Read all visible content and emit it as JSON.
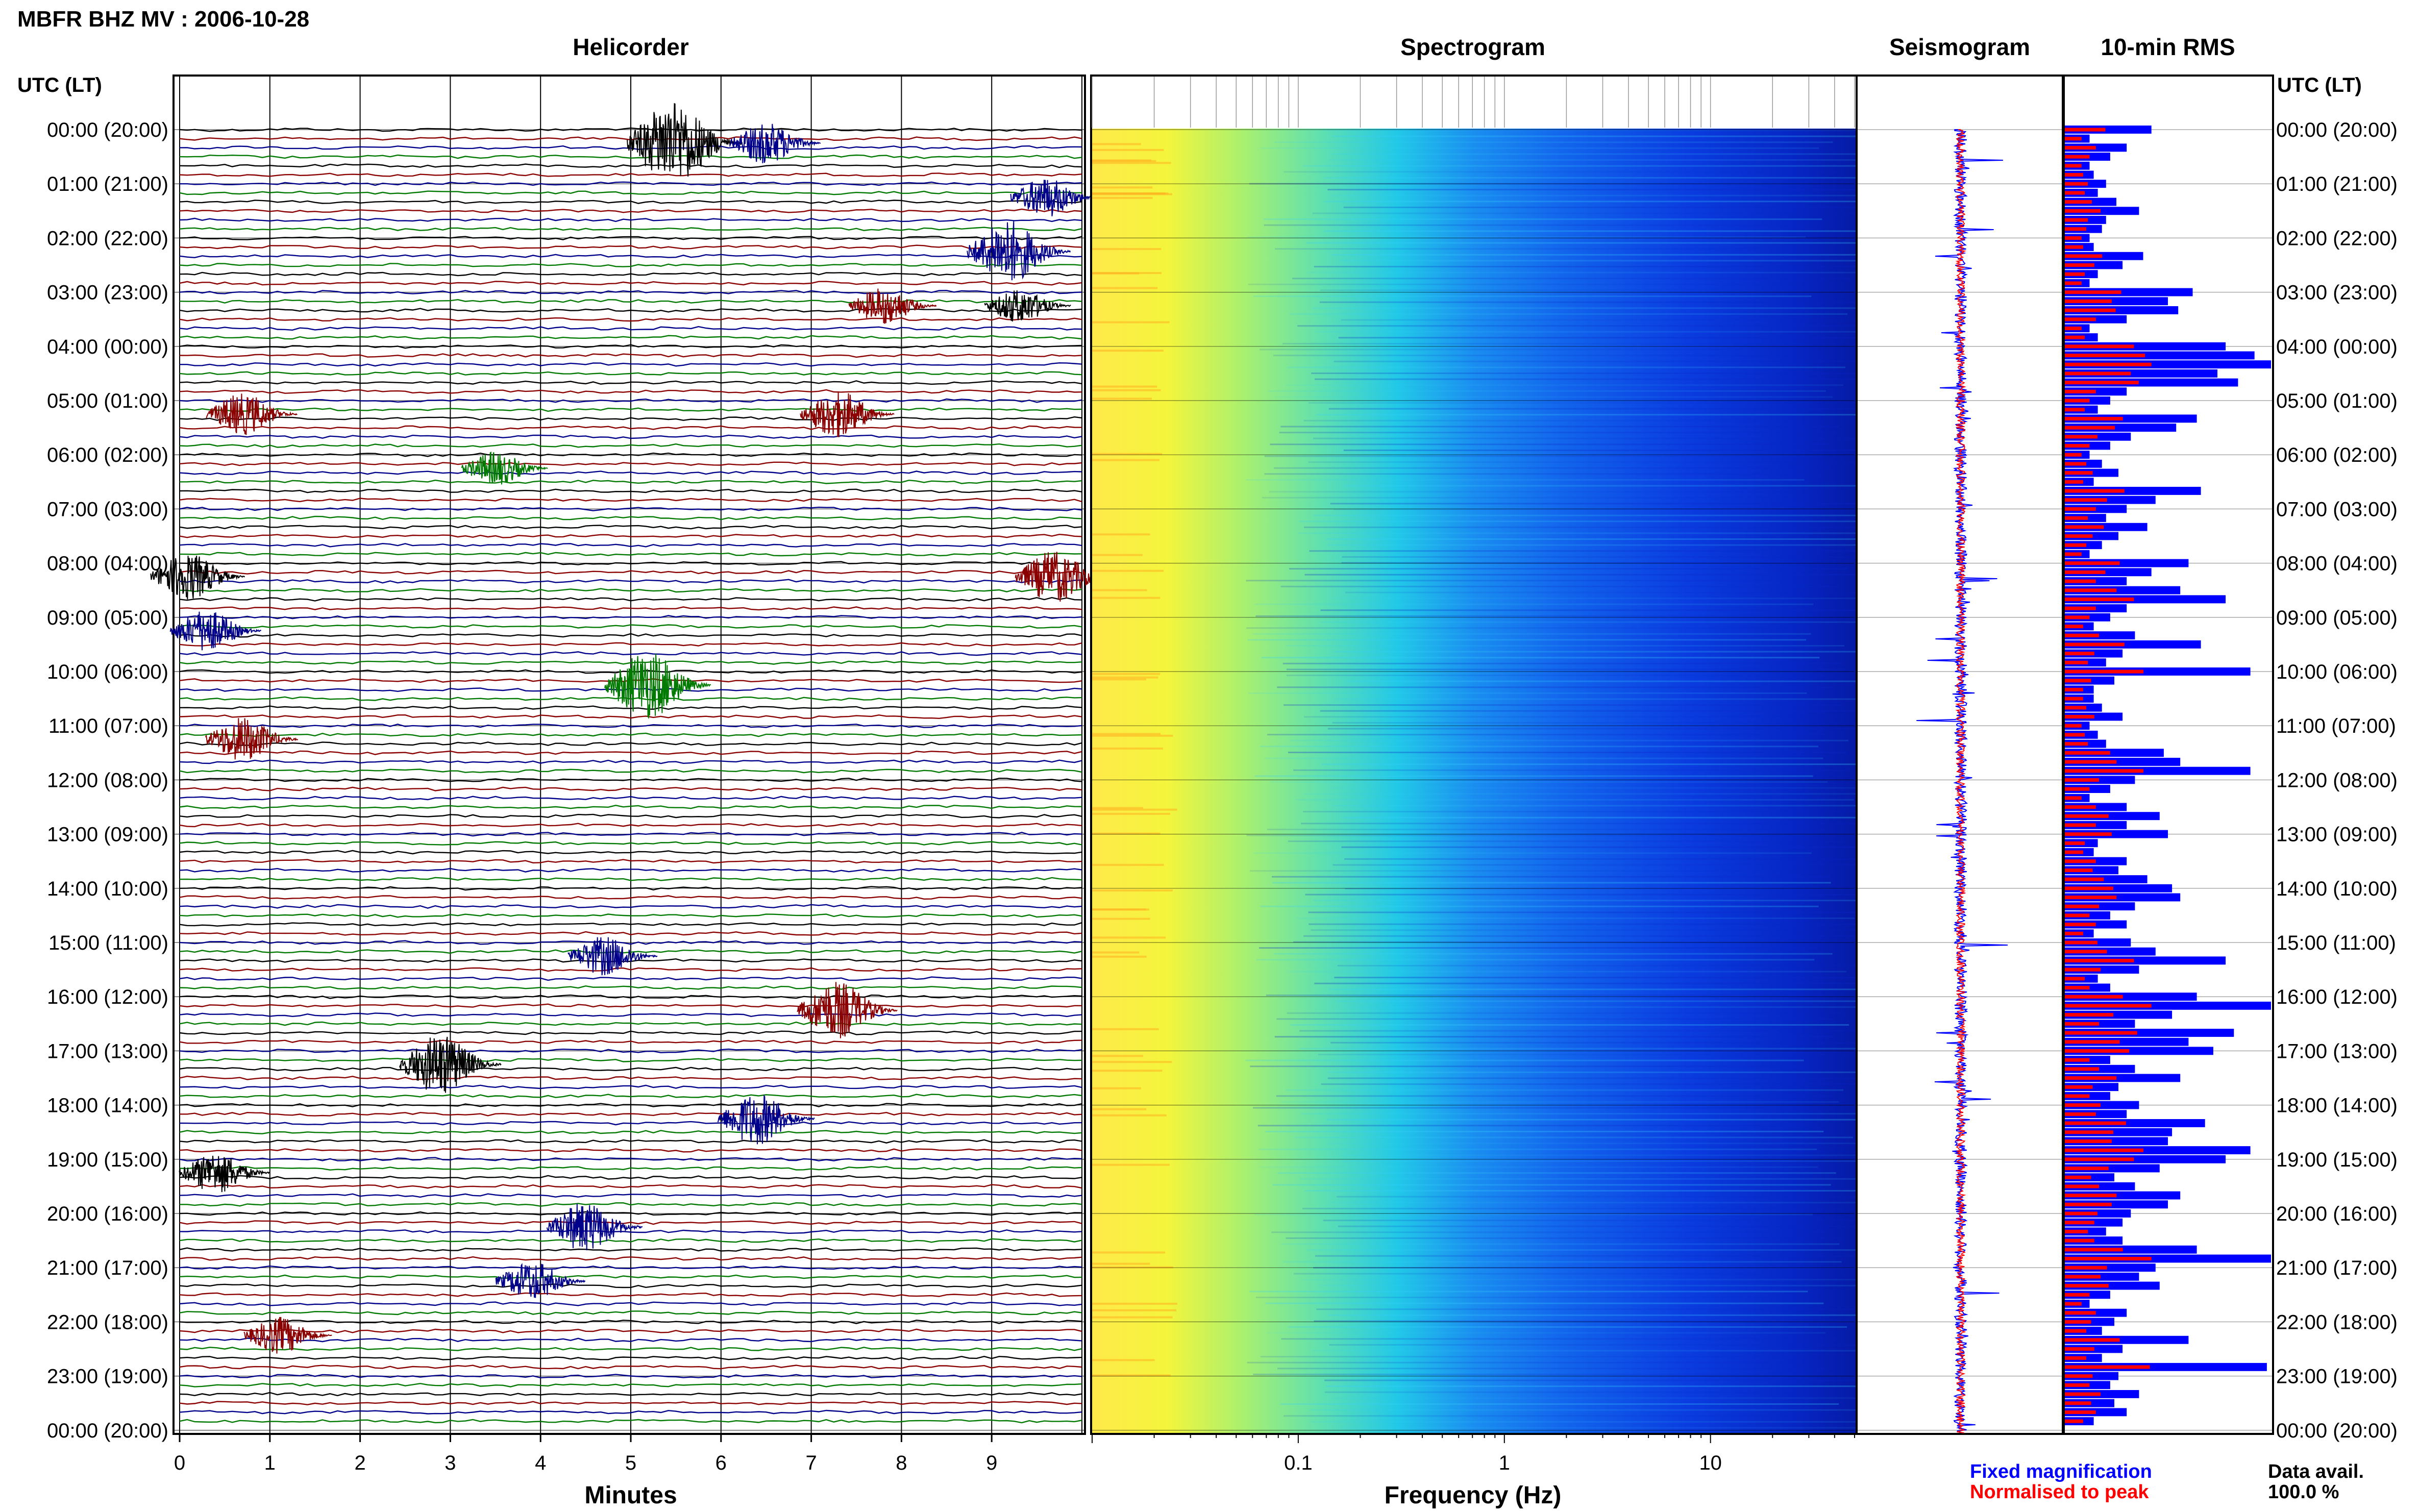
{
  "header": {
    "title": "MBFR BHZ MV : 2006-10-28"
  },
  "panels": {
    "helicorder": "Helicorder",
    "spectrogram": "Spectrogram",
    "seismogram": "Seismogram",
    "rms": "10-min RMS"
  },
  "axes": {
    "utc_header": "UTC (LT)",
    "minutes_label": "Minutes",
    "frequency_label": "Frequency (Hz)",
    "minute_ticks": [
      "0",
      "1",
      "2",
      "3",
      "4",
      "5",
      "6",
      "7",
      "8",
      "9"
    ],
    "frequency_ticks": [
      "0.1",
      "1",
      "10"
    ]
  },
  "time_labels": [
    "00:00 (20:00)",
    "01:00 (21:00)",
    "02:00 (22:00)",
    "03:00 (23:00)",
    "04:00 (00:00)",
    "05:00 (01:00)",
    "06:00 (02:00)",
    "07:00 (03:00)",
    "08:00 (04:00)",
    "09:00 (05:00)",
    "10:00 (06:00)",
    "11:00 (07:00)",
    "12:00 (08:00)",
    "13:00 (09:00)",
    "14:00 (10:00)",
    "15:00 (11:00)",
    "16:00 (12:00)",
    "17:00 (13:00)",
    "18:00 (14:00)",
    "19:00 (15:00)",
    "20:00 (16:00)",
    "21:00 (17:00)",
    "22:00 (18:00)",
    "23:00 (19:00)",
    "00:00 (20:00)"
  ],
  "legend": {
    "fixed": "Fixed magnification",
    "normalised": "Normalised to peak",
    "data_avail_label": "Data avail.",
    "data_avail_value": "100.0 %"
  },
  "colors": {
    "black": "#000000",
    "red": "#8b0000",
    "blue": "#00008b",
    "green": "#007a00",
    "rms_fixed": "#0000ff",
    "rms_norm": "#ff0000"
  },
  "chart_data": {
    "type": "helicorder",
    "station": "MBFR BHZ MV",
    "date": "2006-10-28",
    "helicorder": {
      "x_unit": "minutes",
      "xlim": [
        0,
        10
      ],
      "trace_colors": [
        "black",
        "red",
        "blue",
        "green"
      ],
      "events": [
        {
          "hour": 0,
          "minute": 5.6,
          "amp": 3.2,
          "color": "black"
        },
        {
          "hour": 0,
          "minute": 6.6,
          "amp": 1.6,
          "color": "blue"
        },
        {
          "hour": 1,
          "minute": 9.7,
          "amp": 1.5,
          "color": "blue"
        },
        {
          "hour": 2,
          "minute": 9.3,
          "amp": 2.4,
          "color": "blue"
        },
        {
          "hour": 3,
          "minute": 7.9,
          "amp": 1.4,
          "color": "red"
        },
        {
          "hour": 3,
          "minute": 9.4,
          "amp": 1.3,
          "color": "black"
        },
        {
          "hour": 5,
          "minute": 0.8,
          "amp": 1.6,
          "color": "red"
        },
        {
          "hour": 5,
          "minute": 7.4,
          "amp": 1.8,
          "color": "red"
        },
        {
          "hour": 6,
          "minute": 3.6,
          "amp": 1.3,
          "color": "green"
        },
        {
          "hour": 8,
          "minute": 0.2,
          "amp": 1.8,
          "color": "black"
        },
        {
          "hour": 8,
          "minute": 9.8,
          "amp": 2.0,
          "color": "red"
        },
        {
          "hour": 9,
          "minute": 0.4,
          "amp": 1.6,
          "color": "blue"
        },
        {
          "hour": 10,
          "minute": 5.3,
          "amp": 2.6,
          "color": "green"
        },
        {
          "hour": 11,
          "minute": 0.8,
          "amp": 1.7,
          "color": "red"
        },
        {
          "hour": 15,
          "minute": 4.8,
          "amp": 1.5,
          "color": "blue"
        },
        {
          "hour": 16,
          "minute": 7.4,
          "amp": 2.2,
          "color": "red"
        },
        {
          "hour": 17,
          "minute": 3.0,
          "amp": 2.3,
          "color": "black"
        },
        {
          "hour": 18,
          "minute": 6.5,
          "amp": 2.0,
          "color": "blue"
        },
        {
          "hour": 19,
          "minute": 0.5,
          "amp": 1.6,
          "color": "black"
        },
        {
          "hour": 20,
          "minute": 4.6,
          "amp": 1.9,
          "color": "blue"
        },
        {
          "hour": 21,
          "minute": 4.0,
          "amp": 1.5,
          "color": "blue"
        },
        {
          "hour": 22,
          "minute": 1.2,
          "amp": 1.4,
          "color": "red"
        }
      ]
    },
    "spectrogram": {
      "x_unit": "Hz",
      "x_scale": "log",
      "xlim": [
        0.01,
        50
      ],
      "colormap": [
        "#ffff00",
        "#7fff7f",
        "#00ffff",
        "#0080ff",
        "#0000ff",
        "#00008b"
      ]
    },
    "rms": {
      "interval_minutes": 10,
      "fixed_magnification": [
        0.42,
        0.12,
        0.3,
        0.22,
        0.12,
        0.14,
        0.2,
        0.16,
        0.25,
        0.36,
        0.2,
        0.18,
        0.12,
        0.14,
        0.38,
        0.28,
        0.16,
        0.12,
        0.62,
        0.5,
        0.55,
        0.3,
        0.12,
        0.16,
        0.78,
        0.92,
        1.0,
        0.74,
        0.84,
        0.3,
        0.22,
        0.16,
        0.64,
        0.54,
        0.32,
        0.22,
        0.12,
        0.18,
        0.26,
        0.14,
        0.66,
        0.44,
        0.3,
        0.2,
        0.4,
        0.26,
        0.18,
        0.12,
        0.6,
        0.42,
        0.3,
        0.56,
        0.78,
        0.3,
        0.22,
        0.14,
        0.34,
        0.66,
        0.28,
        0.2,
        0.9,
        0.24,
        0.14,
        0.14,
        0.18,
        0.28,
        0.12,
        0.16,
        0.2,
        0.48,
        0.56,
        0.9,
        0.34,
        0.22,
        0.12,
        0.3,
        0.46,
        0.3,
        0.5,
        0.16,
        0.14,
        0.3,
        0.26,
        0.4,
        0.52,
        0.56,
        0.34,
        0.22,
        0.3,
        0.14,
        0.32,
        0.44,
        0.78,
        0.36,
        0.16,
        0.22,
        0.64,
        1.0,
        0.52,
        0.34,
        0.82,
        0.6,
        0.72,
        0.22,
        0.34,
        0.56,
        0.26,
        0.22,
        0.36,
        0.3,
        0.68,
        0.52,
        0.5,
        0.9,
        0.78,
        0.46,
        0.24,
        0.34,
        0.56,
        0.5,
        0.32,
        0.28,
        0.2,
        0.28,
        0.64,
        1.0,
        0.44,
        0.36,
        0.46,
        0.22,
        0.12,
        0.3,
        0.24,
        0.18,
        0.6,
        0.28,
        0.18,
        0.98,
        0.26,
        0.22,
        0.36,
        0.24,
        0.3,
        0.14
      ]
    },
    "seismogram": {
      "colors": [
        "blue",
        "red"
      ]
    }
  }
}
